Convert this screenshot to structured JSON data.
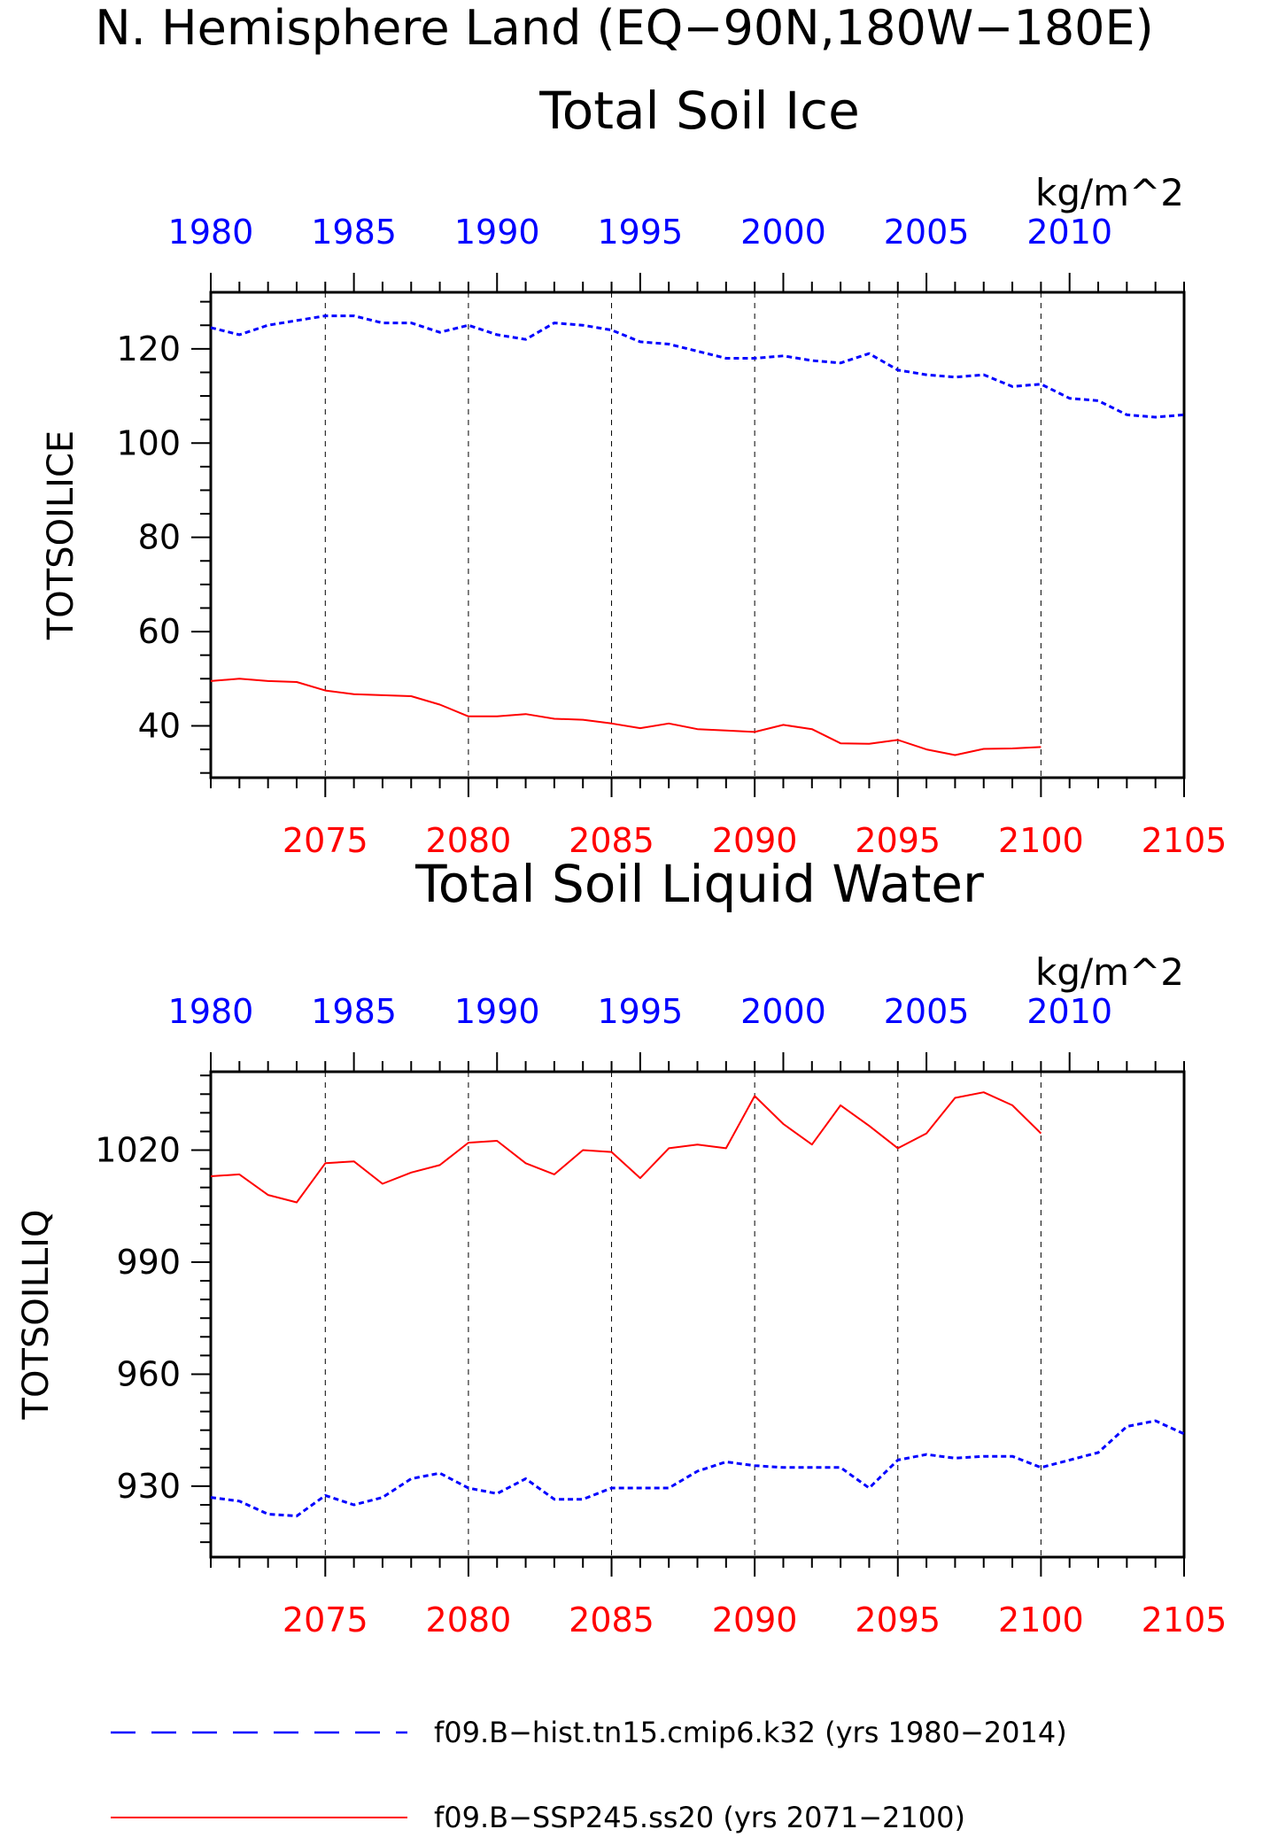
{
  "figure": {
    "title_line1": "N. Hemisphere Land (EQ−90N,180W−180E)",
    "colors": {
      "hist": "#0000ff",
      "ssp": "#ff0000",
      "axis": "#000000",
      "grid": "#000000"
    }
  },
  "legend": {
    "hist_label": "f09.B−hist.tn15.cmip6.k32 (yrs 1980−2014)",
    "ssp_label": "f09.B−SSP245.ss20 (yrs 2071−2100)"
  },
  "chart_data": [
    {
      "type": "line",
      "title": "Total Soil Ice",
      "units": "kg/m^2",
      "ylabel": "TOTSOILICE",
      "ylim": [
        29,
        132
      ],
      "yticks": [
        40,
        60,
        80,
        100,
        120
      ],
      "ytick_labels": [
        "40",
        "60",
        "80",
        "100",
        "120"
      ],
      "y_minor_step": 5,
      "top_axis": {
        "xlim": [
          1980,
          2014
        ],
        "ticks": [
          1980,
          1985,
          1990,
          1995,
          2000,
          2005,
          2010
        ],
        "tick_labels": [
          "1980",
          "1985",
          "1990",
          "1995",
          "2000",
          "2005",
          "2010"
        ]
      },
      "bottom_axis": {
        "xlim": [
          2071,
          2105
        ],
        "ticks": [
          2075,
          2080,
          2085,
          2090,
          2095,
          2100,
          2105
        ],
        "tick_labels": [
          "2075",
          "2080",
          "2085",
          "2090",
          "2095",
          "2100",
          "2105"
        ]
      },
      "grid_x": [
        2075,
        2080,
        2085,
        2090,
        2095,
        2100
      ],
      "series": [
        {
          "name": "f09.B−hist.tn15.cmip6.k32 (yrs 1980−2014)",
          "axis": "top",
          "style": "dashed",
          "x": [
            1980,
            1981,
            1982,
            1983,
            1984,
            1985,
            1986,
            1987,
            1988,
            1989,
            1990,
            1991,
            1992,
            1993,
            1994,
            1995,
            1996,
            1997,
            1998,
            1999,
            2000,
            2001,
            2002,
            2003,
            2004,
            2005,
            2006,
            2007,
            2008,
            2009,
            2010,
            2011,
            2012,
            2013,
            2014
          ],
          "y": [
            124.5,
            123,
            125,
            126,
            127,
            127,
            125.5,
            125.5,
            123.5,
            125,
            123,
            122,
            125.5,
            125,
            124,
            121.5,
            121,
            119.5,
            118,
            118,
            118.5,
            117.5,
            117,
            119,
            115.5,
            114.5,
            114,
            114.5,
            112,
            112.5,
            109.5,
            109,
            106,
            105.5,
            106
          ]
        },
        {
          "name": "f09.B−SSP245.ss20 (yrs 2071−2100)",
          "axis": "bottom",
          "style": "solid",
          "x": [
            2071,
            2072,
            2073,
            2074,
            2075,
            2076,
            2077,
            2078,
            2079,
            2080,
            2081,
            2082,
            2083,
            2084,
            2085,
            2086,
            2087,
            2088,
            2089,
            2090,
            2091,
            2092,
            2093,
            2094,
            2095,
            2096,
            2097,
            2098,
            2099,
            2100
          ],
          "y": [
            49.5,
            50,
            49.5,
            49.3,
            47.5,
            46.7,
            46.5,
            46.3,
            44.5,
            42,
            42,
            42.5,
            41.5,
            41.3,
            40.5,
            39.5,
            40.5,
            39.3,
            39,
            38.7,
            40.2,
            39.3,
            36.3,
            36.2,
            37,
            35,
            33.8,
            35.1,
            35.2,
            35.5
          ]
        }
      ]
    },
    {
      "type": "line",
      "title": "Total Soil Liquid Water",
      "units": "kg/m^2",
      "ylabel": "TOTSOILLIQ",
      "ylim": [
        911,
        1041
      ],
      "yticks": [
        930,
        960,
        990,
        1020
      ],
      "ytick_labels": [
        "930",
        "960",
        "990",
        "1020"
      ],
      "y_minor_step": 5,
      "top_axis": {
        "xlim": [
          1980,
          2014
        ],
        "ticks": [
          1980,
          1985,
          1990,
          1995,
          2000,
          2005,
          2010
        ],
        "tick_labels": [
          "1980",
          "1985",
          "1990",
          "1995",
          "2000",
          "2005",
          "2010"
        ]
      },
      "bottom_axis": {
        "xlim": [
          2071,
          2105
        ],
        "ticks": [
          2075,
          2080,
          2085,
          2090,
          2095,
          2100,
          2105
        ],
        "tick_labels": [
          "2075",
          "2080",
          "2085",
          "2090",
          "2095",
          "2100",
          "2105"
        ]
      },
      "grid_x": [
        2075,
        2080,
        2085,
        2090,
        2095,
        2100
      ],
      "series": [
        {
          "name": "f09.B−hist.tn15.cmip6.k32 (yrs 1980−2014)",
          "axis": "top",
          "style": "dashed",
          "x": [
            1980,
            1981,
            1982,
            1983,
            1984,
            1985,
            1986,
            1987,
            1988,
            1989,
            1990,
            1991,
            1992,
            1993,
            1994,
            1995,
            1996,
            1997,
            1998,
            1999,
            2000,
            2001,
            2002,
            2003,
            2004,
            2005,
            2006,
            2007,
            2008,
            2009,
            2010,
            2011,
            2012,
            2013,
            2014
          ],
          "y": [
            927,
            926,
            922.5,
            922,
            927.5,
            925,
            927,
            932,
            933.5,
            929.5,
            928,
            932,
            926.5,
            926.5,
            929.5,
            929.5,
            929.5,
            934,
            936.5,
            935.5,
            935,
            935,
            935,
            929.5,
            937,
            938.5,
            937.5,
            938,
            938,
            935,
            937,
            939,
            946,
            947.5,
            944
          ]
        },
        {
          "name": "f09.B−SSP245.ss20 (yrs 2071−2100)",
          "axis": "bottom",
          "style": "solid",
          "x": [
            2071,
            2072,
            2073,
            2074,
            2075,
            2076,
            2077,
            2078,
            2079,
            2080,
            2081,
            2082,
            2083,
            2084,
            2085,
            2086,
            2087,
            2088,
            2089,
            2090,
            2091,
            2092,
            2093,
            2094,
            2095,
            2096,
            2097,
            2098,
            2099,
            2100
          ],
          "y": [
            1013,
            1013.5,
            1008,
            1006,
            1016.5,
            1017,
            1011,
            1014,
            1016,
            1022,
            1022.5,
            1016.5,
            1013.5,
            1020,
            1019.5,
            1012.5,
            1020.5,
            1021.5,
            1020.5,
            1034.5,
            1027,
            1021.5,
            1032,
            1026.5,
            1020.5,
            1024.5,
            1034,
            1035.5,
            1032,
            1024.5
          ]
        }
      ]
    }
  ]
}
